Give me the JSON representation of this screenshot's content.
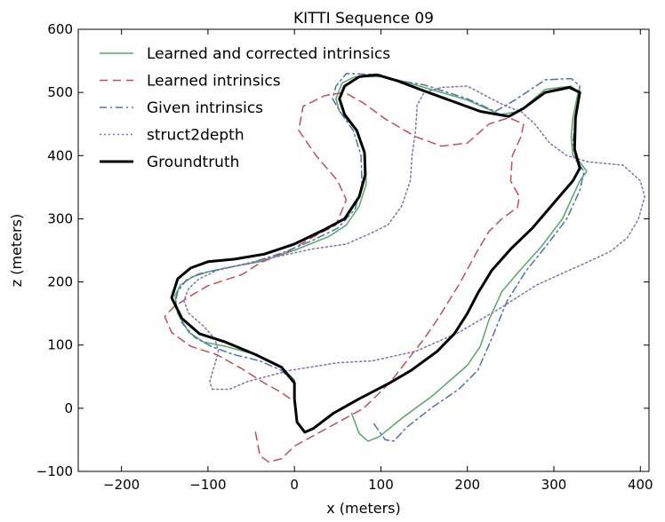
{
  "chart_data": {
    "type": "line",
    "title": "KITTI Sequence 09",
    "xlabel": "x (meters)",
    "ylabel": "z (meters)",
    "xlim": [
      -250,
      410
    ],
    "ylim": [
      -100,
      600
    ],
    "xticks": [
      -200,
      -100,
      0,
      100,
      200,
      300,
      400
    ],
    "yticks": [
      -100,
      0,
      100,
      200,
      300,
      400,
      500,
      600
    ],
    "xtick_labels": [
      "−200",
      "−100",
      "0",
      "100",
      "200",
      "300",
      "400"
    ],
    "ytick_labels": [
      "−100",
      "0",
      "100",
      "200",
      "300",
      "400",
      "500",
      "600"
    ],
    "grid": false,
    "legend_position": "top-left",
    "series": [
      {
        "name": "Learned and corrected intrinsics",
        "color": "#55a868",
        "style": "solid",
        "points": [
          [
            66,
            -8
          ],
          [
            75,
            -40
          ],
          [
            85,
            -52
          ],
          [
            98,
            -45
          ],
          [
            125,
            -15
          ],
          [
            160,
            20
          ],
          [
            200,
            68
          ],
          [
            215,
            98
          ],
          [
            225,
            140
          ],
          [
            240,
            185
          ],
          [
            262,
            220
          ],
          [
            285,
            255
          ],
          [
            310,
            300
          ],
          [
            330,
            360
          ],
          [
            338,
            375
          ],
          [
            330,
            390
          ],
          [
            322,
            400
          ],
          [
            320,
            430
          ],
          [
            322,
            460
          ],
          [
            328,
            500
          ],
          [
            320,
            510
          ],
          [
            290,
            505
          ],
          [
            260,
            470
          ],
          [
            238,
            465
          ],
          [
            200,
            488
          ],
          [
            150,
            508
          ],
          [
            125,
            518
          ],
          [
            100,
            525
          ],
          [
            70,
            525
          ],
          [
            55,
            515
          ],
          [
            48,
            490
          ],
          [
            52,
            470
          ],
          [
            72,
            440
          ],
          [
            82,
            400
          ],
          [
            83,
            355
          ],
          [
            75,
            320
          ],
          [
            60,
            290
          ],
          [
            40,
            272
          ],
          [
            0,
            250
          ],
          [
            -40,
            232
          ],
          [
            -80,
            222
          ],
          [
            -100,
            216
          ],
          [
            -118,
            208
          ],
          [
            -132,
            195
          ],
          [
            -138,
            178
          ],
          [
            -135,
            150
          ],
          [
            -122,
            120
          ],
          [
            -105,
            105
          ],
          [
            -80,
            98
          ],
          [
            -45,
            85
          ],
          [
            -15,
            65
          ],
          [
            0,
            45
          ],
          [
            0,
            15
          ]
        ]
      },
      {
        "name": "Learned intrinsics",
        "color": "#c44e52",
        "style": "dashed",
        "points": [
          [
            -45,
            -38
          ],
          [
            -40,
            -75
          ],
          [
            -30,
            -85
          ],
          [
            -15,
            -80
          ],
          [
            0,
            -60
          ],
          [
            40,
            -30
          ],
          [
            80,
            0
          ],
          [
            110,
            40
          ],
          [
            130,
            75
          ],
          [
            150,
            110
          ],
          [
            165,
            140
          ],
          [
            190,
            195
          ],
          [
            212,
            250
          ],
          [
            225,
            280
          ],
          [
            240,
            300
          ],
          [
            258,
            318
          ],
          [
            260,
            335
          ],
          [
            250,
            360
          ],
          [
            252,
            400
          ],
          [
            262,
            430
          ],
          [
            265,
            450
          ],
          [
            248,
            460
          ],
          [
            225,
            450
          ],
          [
            200,
            420
          ],
          [
            170,
            415
          ],
          [
            140,
            430
          ],
          [
            105,
            458
          ],
          [
            80,
            483
          ],
          [
            58,
            500
          ],
          [
            35,
            495
          ],
          [
            10,
            478
          ],
          [
            5,
            440
          ],
          [
            25,
            400
          ],
          [
            50,
            360
          ],
          [
            60,
            330
          ],
          [
            48,
            290
          ],
          [
            20,
            270
          ],
          [
            -5,
            250
          ],
          [
            -40,
            230
          ],
          [
            -60,
            212
          ],
          [
            -80,
            203
          ],
          [
            -100,
            194
          ],
          [
            -120,
            178
          ],
          [
            -140,
            160
          ],
          [
            -150,
            145
          ],
          [
            -142,
            120
          ],
          [
            -120,
            98
          ],
          [
            -90,
            85
          ],
          [
            -60,
            62
          ],
          [
            -35,
            40
          ],
          [
            -15,
            25
          ],
          [
            0,
            10
          ]
        ]
      },
      {
        "name": "Given intrinsics",
        "color": "#4c72b0",
        "style": "dashdot",
        "points": [
          [
            92,
            -25
          ],
          [
            105,
            -50
          ],
          [
            115,
            -52
          ],
          [
            130,
            -30
          ],
          [
            160,
            2
          ],
          [
            190,
            30
          ],
          [
            212,
            60
          ],
          [
            228,
            110
          ],
          [
            246,
            170
          ],
          [
            268,
            218
          ],
          [
            290,
            255
          ],
          [
            315,
            300
          ],
          [
            330,
            345
          ],
          [
            335,
            375
          ],
          [
            326,
            392
          ],
          [
            322,
            420
          ],
          [
            325,
            460
          ],
          [
            330,
            510
          ],
          [
            320,
            522
          ],
          [
            290,
            520
          ],
          [
            255,
            488
          ],
          [
            232,
            470
          ],
          [
            200,
            490
          ],
          [
            150,
            512
          ],
          [
            115,
            520
          ],
          [
            100,
            528
          ],
          [
            60,
            530
          ],
          [
            48,
            510
          ],
          [
            44,
            490
          ],
          [
            55,
            465
          ],
          [
            68,
            440
          ],
          [
            77,
            400
          ],
          [
            78,
            355
          ],
          [
            70,
            315
          ],
          [
            50,
            285
          ],
          [
            20,
            265
          ],
          [
            -10,
            248
          ],
          [
            -50,
            230
          ],
          [
            -85,
            220
          ],
          [
            -110,
            213
          ],
          [
            -125,
            203
          ],
          [
            -135,
            185
          ],
          [
            -138,
            165
          ],
          [
            -130,
            135
          ],
          [
            -115,
            112
          ],
          [
            -95,
            97
          ],
          [
            -70,
            85
          ],
          [
            -40,
            75
          ],
          [
            -15,
            60
          ],
          [
            0,
            40
          ],
          [
            0,
            15
          ]
        ]
      },
      {
        "name": "struct2depth",
        "color": "#8172b2",
        "style": "dotted",
        "points": [
          [
            -95,
            30
          ],
          [
            -75,
            30
          ],
          [
            -55,
            42
          ],
          [
            -5,
            60
          ],
          [
            50,
            72
          ],
          [
            90,
            75
          ],
          [
            140,
            90
          ],
          [
            190,
            120
          ],
          [
            240,
            160
          ],
          [
            280,
            195
          ],
          [
            312,
            215
          ],
          [
            340,
            232
          ],
          [
            365,
            248
          ],
          [
            385,
            270
          ],
          [
            398,
            300
          ],
          [
            405,
            335
          ],
          [
            400,
            360
          ],
          [
            380,
            385
          ],
          [
            340,
            390
          ],
          [
            315,
            400
          ],
          [
            295,
            420
          ],
          [
            278,
            450
          ],
          [
            262,
            470
          ],
          [
            245,
            478
          ],
          [
            225,
            492
          ],
          [
            200,
            510
          ],
          [
            170,
            508
          ],
          [
            150,
            500
          ],
          [
            142,
            480
          ],
          [
            140,
            440
          ],
          [
            136,
            400
          ],
          [
            134,
            360
          ],
          [
            124,
            320
          ],
          [
            108,
            290
          ],
          [
            85,
            275
          ],
          [
            60,
            260
          ],
          [
            20,
            252
          ],
          [
            -20,
            240
          ],
          [
            -60,
            228
          ],
          [
            -90,
            218
          ],
          [
            -110,
            205
          ],
          [
            -122,
            190
          ],
          [
            -128,
            170
          ],
          [
            -122,
            150
          ],
          [
            -105,
            130
          ],
          [
            -92,
            110
          ],
          [
            -88,
            90
          ],
          [
            -92,
            70
          ],
          [
            -98,
            42
          ],
          [
            -95,
            30
          ]
        ]
      },
      {
        "name": "Groundtruth",
        "color": "#000000",
        "style": "solid",
        "points": [
          [
            0,
            15
          ],
          [
            3,
            -22
          ],
          [
            12,
            -38
          ],
          [
            22,
            -32
          ],
          [
            45,
            -8
          ],
          [
            75,
            15
          ],
          [
            110,
            40
          ],
          [
            135,
            60
          ],
          [
            165,
            90
          ],
          [
            185,
            118
          ],
          [
            200,
            150
          ],
          [
            212,
            182
          ],
          [
            228,
            218
          ],
          [
            250,
            252
          ],
          [
            275,
            285
          ],
          [
            300,
            325
          ],
          [
            322,
            360
          ],
          [
            330,
            380
          ],
          [
            324,
            410
          ],
          [
            325,
            460
          ],
          [
            330,
            500
          ],
          [
            318,
            508
          ],
          [
            290,
            500
          ],
          [
            265,
            475
          ],
          [
            248,
            462
          ],
          [
            215,
            470
          ],
          [
            175,
            490
          ],
          [
            145,
            505
          ],
          [
            120,
            518
          ],
          [
            95,
            528
          ],
          [
            75,
            525
          ],
          [
            58,
            510
          ],
          [
            52,
            490
          ],
          [
            58,
            465
          ],
          [
            72,
            440
          ],
          [
            81,
            405
          ],
          [
            82,
            370
          ],
          [
            75,
            335
          ],
          [
            58,
            300
          ],
          [
            35,
            283
          ],
          [
            0,
            260
          ],
          [
            -35,
            244
          ],
          [
            -70,
            236
          ],
          [
            -100,
            232
          ],
          [
            -120,
            222
          ],
          [
            -135,
            205
          ],
          [
            -142,
            175
          ],
          [
            -130,
            142
          ],
          [
            -110,
            118
          ],
          [
            -80,
            105
          ],
          [
            -45,
            85
          ],
          [
            -15,
            65
          ],
          [
            0,
            40
          ],
          [
            0,
            15
          ]
        ]
      }
    ]
  }
}
